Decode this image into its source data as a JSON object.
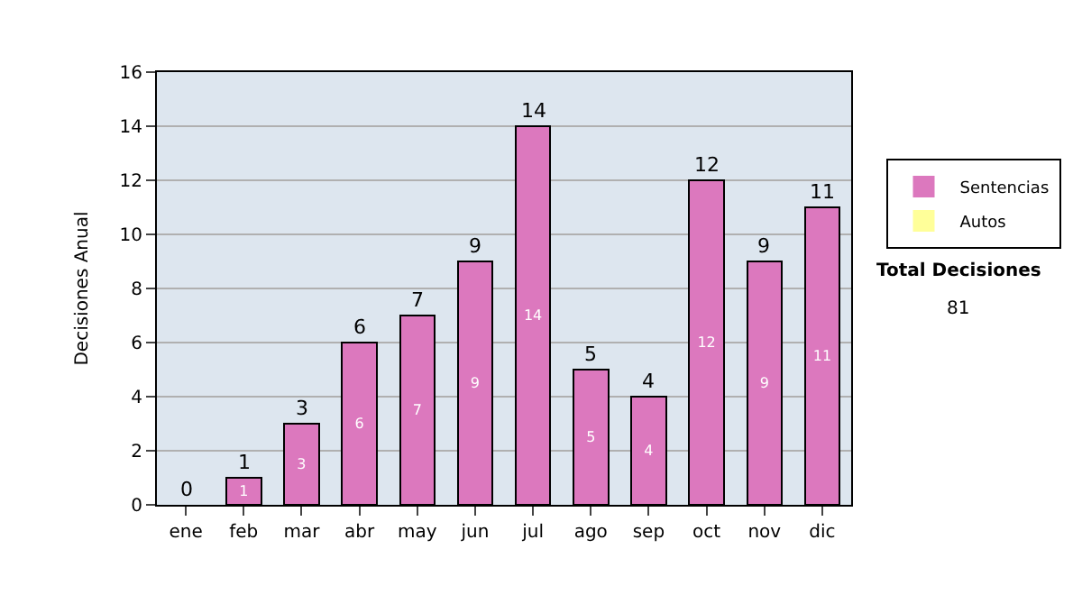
{
  "chart_data": {
    "type": "bar",
    "stacked": true,
    "ylabel": "Decisiones Anual",
    "categories": [
      "ene",
      "feb",
      "mar",
      "abr",
      "may",
      "jun",
      "jul",
      "ago",
      "sep",
      "oct",
      "nov",
      "dic"
    ],
    "series": [
      {
        "name": "Sentencias",
        "color": "#dc78be",
        "values": [
          0,
          1,
          3,
          6,
          7,
          9,
          14,
          5,
          4,
          12,
          9,
          11
        ],
        "value_labels": [
          null,
          "1",
          "3",
          "6",
          "7",
          "9",
          "14",
          "5",
          "4",
          "12",
          "9",
          "11"
        ]
      },
      {
        "name": "Autos",
        "color": "#ffff99",
        "values": [
          0,
          0,
          0,
          0,
          0,
          0,
          0,
          0,
          0,
          0,
          0,
          0
        ]
      }
    ],
    "totals": [
      "0",
      "1",
      "3",
      "6",
      "7",
      "9",
      "14",
      "5",
      "4",
      "12",
      "9",
      "11"
    ],
    "ylim": [
      0,
      16
    ],
    "yticks": [
      0,
      2,
      4,
      6,
      8,
      10,
      12,
      14,
      16
    ],
    "grid": "y",
    "legend": "right",
    "annotations": [
      "Total Decisiones",
      "81"
    ]
  }
}
